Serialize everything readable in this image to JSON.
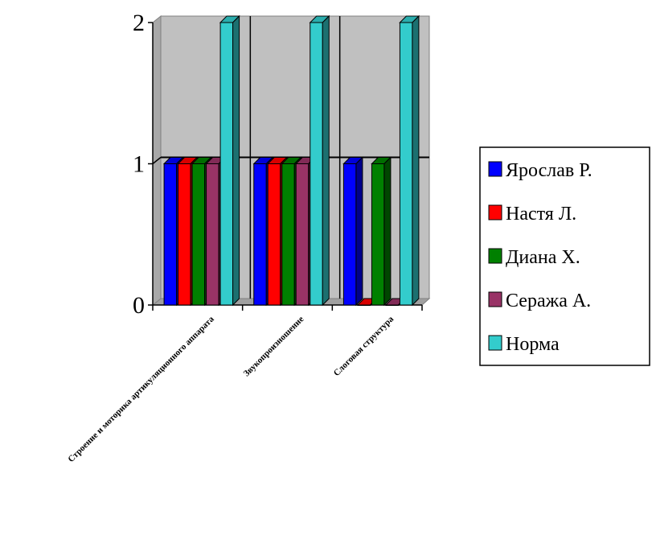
{
  "chart_data": {
    "type": "bar",
    "title": "",
    "xlabel": "",
    "ylabel": "",
    "categories": [
      "Строение и моторика артикуляционного аппарата",
      "Звукопроизношение",
      "Слоговая структура"
    ],
    "series": [
      {
        "name": "Ярослав Р.",
        "color": "#0000ff",
        "values": [
          1,
          1,
          1
        ]
      },
      {
        "name": "Настя Л.",
        "color": "#ff0000",
        "values": [
          1,
          1,
          0
        ]
      },
      {
        "name": "Диана Х.",
        "color": "#008000",
        "values": [
          1,
          1,
          1
        ]
      },
      {
        "name": "Сеража А.",
        "color": "#993366",
        "values": [
          1,
          1,
          0
        ]
      },
      {
        "name": "Норма",
        "color": "#33cccc",
        "values": [
          2,
          2,
          2
        ]
      }
    ],
    "ylim": [
      0,
      2
    ],
    "yticks": [
      "0",
      "1",
      "2"
    ],
    "grid": true,
    "legend": "right",
    "plot_background": "#c0c0c0"
  }
}
